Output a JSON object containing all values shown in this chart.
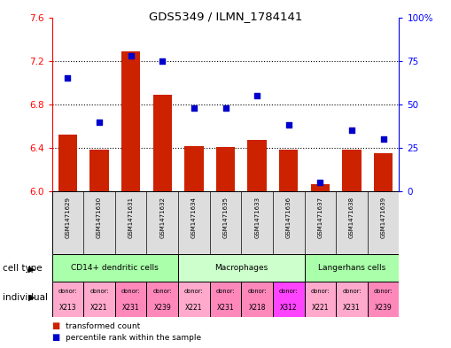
{
  "title": "GDS5349 / ILMN_1784141",
  "samples": [
    "GSM1471629",
    "GSM1471630",
    "GSM1471631",
    "GSM1471632",
    "GSM1471634",
    "GSM1471635",
    "GSM1471633",
    "GSM1471636",
    "GSM1471637",
    "GSM1471638",
    "GSM1471639"
  ],
  "red_values": [
    6.52,
    6.38,
    7.29,
    6.89,
    6.42,
    6.41,
    6.47,
    6.38,
    6.07,
    6.38,
    6.35
  ],
  "blue_values": [
    65,
    40,
    78,
    75,
    48,
    48,
    55,
    38,
    5,
    35,
    30
  ],
  "ylim_left": [
    6.0,
    7.6
  ],
  "ylim_right": [
    0,
    100
  ],
  "yticks_left": [
    6.0,
    6.4,
    6.8,
    7.2,
    7.6
  ],
  "yticks_right": [
    0,
    25,
    50,
    75,
    100
  ],
  "ytick_labels_right": [
    "0",
    "25",
    "50",
    "75",
    "100%"
  ],
  "cell_type_groups": [
    {
      "label": "CD14+ dendritic cells",
      "start": 0,
      "end": 4,
      "color": "#aaffaa"
    },
    {
      "label": "Macrophages",
      "start": 4,
      "end": 8,
      "color": "#ccffcc"
    },
    {
      "label": "Langerhans cells",
      "start": 8,
      "end": 11,
      "color": "#aaffaa"
    }
  ],
  "individual_donors": [
    {
      "donor": "X213",
      "color": "#ffaacc"
    },
    {
      "donor": "X221",
      "color": "#ffaacc"
    },
    {
      "donor": "X231",
      "color": "#ff88bb"
    },
    {
      "donor": "X239",
      "color": "#ff88bb"
    },
    {
      "donor": "X221",
      "color": "#ffaacc"
    },
    {
      "donor": "X231",
      "color": "#ff88bb"
    },
    {
      "donor": "X218",
      "color": "#ff88bb"
    },
    {
      "donor": "X312",
      "color": "#ff44ff"
    },
    {
      "donor": "X221",
      "color": "#ffaacc"
    },
    {
      "donor": "X231",
      "color": "#ffaacc"
    },
    {
      "donor": "X239",
      "color": "#ff88bb"
    }
  ],
  "bar_color": "#CC2200",
  "dot_color": "#0000CC",
  "bar_width": 0.6,
  "base_value": 6.0,
  "legend_red": "transformed count",
  "legend_blue": "percentile rank within the sample",
  "cell_type_label": "cell type",
  "individual_label": "individual",
  "background_color": "#ffffff",
  "sample_bg_color": "#dddddd",
  "grid_color": "#000000",
  "grid_yticks": [
    6.4,
    6.8,
    7.2
  ]
}
